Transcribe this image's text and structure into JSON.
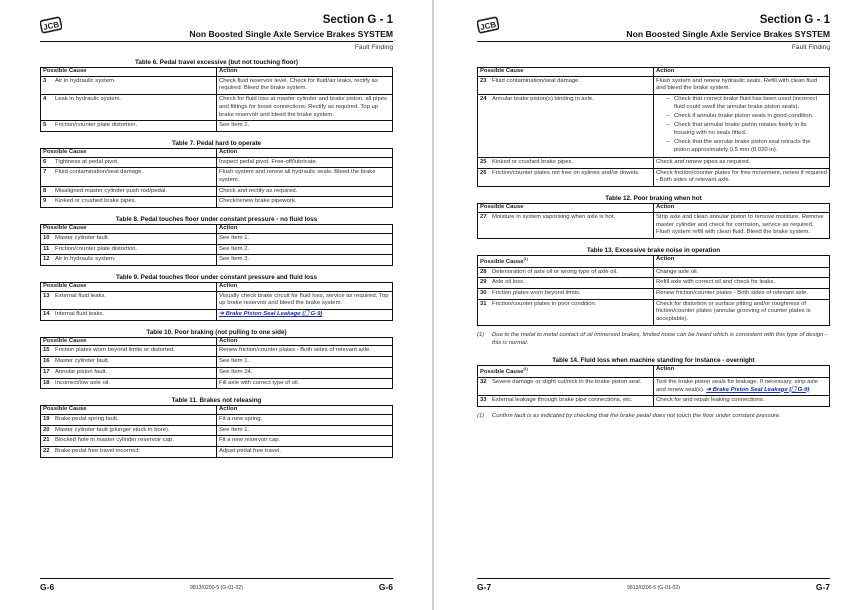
{
  "pages": [
    {
      "section": "Section G - 1",
      "subtitle": "Non Boosted Single Axle Service Brakes SYSTEM",
      "category": "Fault Finding",
      "footer": {
        "page_left": "G-6",
        "doc_ref": "9813/0200-5 (G-01-02)",
        "page_right": "G-6"
      },
      "blocks": [
        {
          "title": "Table 6. Pedal travel excessive (but not touching floor)",
          "headers": [
            "Possible Cause",
            "Action"
          ],
          "rows": [
            {
              "num": "3",
              "cause": "Air in hydraulic system.",
              "action": "Check fluid reservoir level. Check for fluid/air leaks, rectify as required. Bleed the brake system."
            },
            {
              "num": "4",
              "cause": "Leak in hydraulic system.",
              "action": "Check for fluid loss at master cylinder and brake piston, all pipes and fittings for loose connections. Rectify as required. Top up brake reservoir and bleed the brake system."
            },
            {
              "num": "5",
              "cause": "Friction/counter plate distortion.",
              "action": "See Item 2."
            }
          ]
        },
        {
          "title": "Table 7. Pedal hard to operate",
          "headers": [
            "Possible Cause",
            "Action"
          ],
          "rows": [
            {
              "num": "6",
              "cause": "Tightness at pedal pivot.",
              "action": "Inspect pedal pivot. Free-off/lubricate."
            },
            {
              "num": "7",
              "cause": "Fluid contamination/seal damage.",
              "action": "Flush system and renew all hydraulic seals. Bleed the brake system."
            },
            {
              "num": "8",
              "cause": "Misaligned master cylinder push rod/pedal.",
              "action": "Check and rectify as required."
            },
            {
              "num": "9",
              "cause": "Kinked or crushed brake pipes.",
              "action": "Check/renew brake pipework."
            }
          ]
        },
        {
          "title": "Table 8. Pedal touches floor under constant pressure - no fluid loss",
          "headers": [
            "Possible Cause",
            "Action"
          ],
          "rows": [
            {
              "num": "10",
              "cause": "Master cylinder fault.",
              "action": "See Item 1."
            },
            {
              "num": "11",
              "cause": "Friction/counter plate distortion.",
              "action": "See Item 2."
            },
            {
              "num": "12",
              "cause": "Air in hydraulic system.",
              "action": "See Item 3."
            }
          ]
        },
        {
          "title": "Table 9. Pedal touches floor under constant pressure and fluid loss",
          "headers": [
            "Possible Cause",
            "Action"
          ],
          "rows": [
            {
              "num": "13",
              "cause": "External fluid leaks.",
              "action": "Visually check brake circuit for fluid loss, service as required. Top up brake reservoir and bleed the brake system."
            },
            {
              "num": "14",
              "cause": "Internal fluid leaks.",
              "link": "➔ Brake Piston Seal Leakage (🗋 G-9)"
            }
          ]
        },
        {
          "title": "Table 10. Poor braking (not pulling to one side)",
          "headers": [
            "Possible Cause",
            "Action"
          ],
          "rows": [
            {
              "num": "15",
              "cause": "Friction plates worn beyond limits or distorted.",
              "action": "Renew friction/counter plates - Both sides of relevant axle."
            },
            {
              "num": "16",
              "cause": "Master cylinder fault.",
              "action": "See Item 1."
            },
            {
              "num": "17",
              "cause": "Annular piston fault.",
              "action": "See Item 24."
            },
            {
              "num": "18",
              "cause": "Incorrect/low axle oil.",
              "action": "Fill axle with correct type of oil."
            }
          ]
        },
        {
          "title": "Table 11. Brakes not releasing",
          "headers": [
            "Possible Cause",
            "Action"
          ],
          "rows": [
            {
              "num": "19",
              "cause": "Brake pedal spring fault.",
              "action": "Fit a new spring."
            },
            {
              "num": "20",
              "cause": "Master cylinder fault (plunger stuck in bore).",
              "action": "See Item 1."
            },
            {
              "num": "21",
              "cause": "Blocked hole in master cylinder reservoir cap.",
              "action": "Fit a new reservoir cap."
            },
            {
              "num": "22",
              "cause": "Brake pedal free travel incorrect.",
              "action": "Adjust pedal free travel."
            }
          ]
        }
      ]
    },
    {
      "section": "Section G - 1",
      "subtitle": "Non Boosted Single Axle Service Brakes SYSTEM",
      "category": "Fault Finding",
      "footer": {
        "page_left": "G-7",
        "doc_ref": "9813/0200-5 (G-01-02)",
        "page_right": "G-7"
      },
      "blocks": [
        {
          "title": "",
          "headers": [
            "Possible Cause",
            "Action"
          ],
          "rows": [
            {
              "num": "23",
              "cause": "Fluid contamination/seal damage.",
              "action": "Flush system and renew hydraulic seals. Refill with clean fluid and bleed the brake system."
            },
            {
              "num": "24",
              "cause": "Annular brake piston(s) binding in axle.",
              "bullets": [
                "Check that correct brake fluid has been used (incorrect fluid could swell the annular brake piston seals).",
                "Check if annular brake piston seals in good condition.",
                "Check that annular brake piston rotates freely in its housing with no seals fitted.",
                "Check that the annular brake piston seal retracts the piston approximately 0.5 mm (0.020 in)."
              ]
            },
            {
              "num": "25",
              "cause": "Kinked or crushed brake pipes.",
              "action": "Check and renew pipes as required."
            },
            {
              "num": "26",
              "cause": "Friction/counter plates not free on splines and/or dowels.",
              "action": "Check friction/counter plates for free movement, renew if required - Both sides of relevant axle."
            }
          ]
        },
        {
          "title": "Table 12. Poor braking when hot",
          "headers": [
            "Possible Cause",
            "Action"
          ],
          "rows": [
            {
              "num": "27",
              "cause": "Moisture in system vaporising when axle is hot.",
              "action": "Strip axle and clean annular piston to remove moisture. Remove master cylinder and check for corrosion, service as required. Flush system refill with clean fluid. Bleed the brake system."
            }
          ]
        },
        {
          "title": "Table 13. Excessive brake noise in operation",
          "headers": [
            "Possible Cause",
            "Action"
          ],
          "header_note": "(1)",
          "rows": [
            {
              "num": "28",
              "cause": "Deterioration of axle oil or wrong type of axle oil.",
              "action": "Change axle oil."
            },
            {
              "num": "29",
              "cause": "Axle oil loss.",
              "action": "Refill axle with correct oil and check for leaks."
            },
            {
              "num": "30",
              "cause": "Friction plates worn beyond limits.",
              "action": "Renew friction/counter plates - Both sides of relevant axle."
            },
            {
              "num": "31",
              "cause": "Friction/counter plates in poor condition.",
              "action": "Check for distortion or surface pitting and/or roughness of friction/counter plates (annular grooving of counter plates is acceptable)."
            }
          ],
          "footnote": {
            "mark": "(1)",
            "text": "Due to the metal to metal contact of oil immersed brakes, limited noise can be heard which is consistent with this type of design - this is normal."
          }
        },
        {
          "title": "Table 14. Fluid loss when machine standing for instance - overnight",
          "headers": [
            "Possible Cause",
            "Action"
          ],
          "header_note": "(1)",
          "rows": [
            {
              "num": "32",
              "cause": "Severe damage or slight cut/nick in the brake piston seal.",
              "action": "Test the brake piston seals for leakage. If necessary, strip axle and renew seal(s). ",
              "link": "➔ Brake Piston Seal Leakage (🗋 G-9)"
            },
            {
              "num": "33",
              "cause": "External leakage through brake pipe connections, etc.",
              "action": "Check for and repair leaking connections."
            }
          ],
          "footnote": {
            "mark": "(1)",
            "text": "Confirm fault is as indicated by checking that the brake pedal does not touch the floor under constant pressure."
          }
        }
      ]
    }
  ],
  "colors": {
    "link": "#1a2fb0",
    "text": "#222222",
    "rule": "#111111"
  }
}
